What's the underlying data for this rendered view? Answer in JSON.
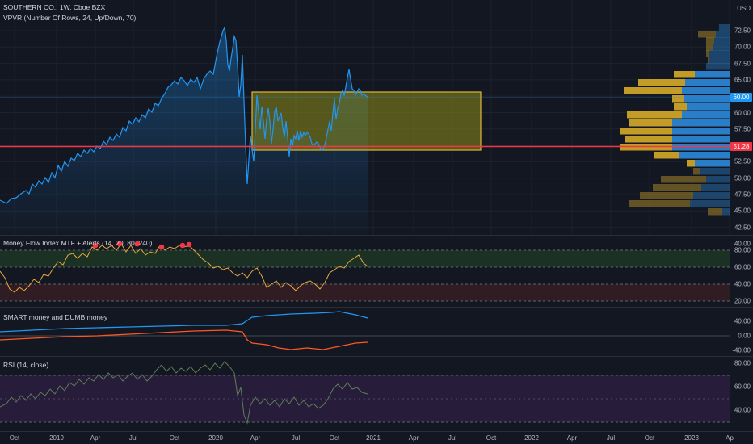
{
  "header": {
    "symbol_title": "SOUTHERN CO., 1W, Cboe BZX",
    "indicator_title": "VPVR (Number Of Rows, 24, Up/Down, 70)",
    "currency": "USD"
  },
  "price_axis": {
    "labels": [
      "72.50",
      "70.00",
      "67.50",
      "65.00",
      "62.50",
      "60.00",
      "57.50",
      "55.00",
      "52.50",
      "50.00",
      "47.50",
      "45.00",
      "42.50",
      "40.00"
    ],
    "current_price": "60.00",
    "horizontal_line_price": "51.28"
  },
  "mfi_pane": {
    "title": "Money Flow Index MTF + Alerts (14, 20, 80, 240)",
    "axis_labels": [
      "80.00",
      "60.00",
      "40.00",
      "20.00"
    ]
  },
  "smart_pane": {
    "title": "SMART money and DUMB money",
    "axis_labels": [
      "40.00",
      "0.00",
      "-40.00"
    ]
  },
  "rsi_pane": {
    "title": "RSI (14, close)",
    "axis_labels": [
      "80.00",
      "60.00",
      "40.00"
    ]
  },
  "time_axis": {
    "labels": [
      "Oct",
      "2019",
      "Apr",
      "Jul",
      "Oct",
      "2020",
      "Apr",
      "Jul",
      "Oct",
      "2021",
      "Apr",
      "Jul",
      "Oct",
      "2022",
      "Apr",
      "Jul",
      "Oct",
      "2023",
      "Ap"
    ]
  },
  "colors": {
    "background": "#131722",
    "price_line": "#2196f3",
    "red_line": "#f23645",
    "box_fill": "#8c8c18",
    "box_border": "#e0b637",
    "mfi_line": "#e7a83b",
    "smart_line": "#2196f3",
    "dumb_line": "#ff5722",
    "rsi_line": "#5f7d58",
    "rsi_band": "#2b1f3f",
    "vp_up": "#2a7ec8",
    "vp_down": "#c39b27"
  }
}
